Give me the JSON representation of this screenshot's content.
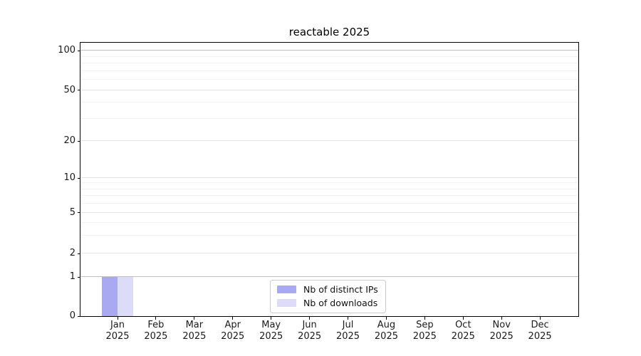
{
  "chart_data": {
    "type": "bar",
    "title": "reactable 2025",
    "categories": [
      "Jan 2025",
      "Feb 2025",
      "Mar 2025",
      "Apr 2025",
      "May 2025",
      "Jun 2025",
      "Jul 2025",
      "Aug 2025",
      "Sep 2025",
      "Oct 2025",
      "Nov 2025",
      "Dec 2025"
    ],
    "x_tick_top": [
      "Jan",
      "Feb",
      "Mar",
      "Apr",
      "May",
      "Jun",
      "Jul",
      "Aug",
      "Sep",
      "Oct",
      "Nov",
      "Dec"
    ],
    "x_tick_bottom": "2025",
    "series": [
      {
        "name": "Nb of distinct IPs",
        "color": "#a8a9f1",
        "values": [
          1,
          0,
          0,
          0,
          0,
          0,
          0,
          0,
          0,
          0,
          0,
          0
        ]
      },
      {
        "name": "Nb of downloads",
        "color": "#dcdcf8",
        "values": [
          1,
          0,
          0,
          0,
          0,
          0,
          0,
          0,
          0,
          0,
          0,
          0
        ]
      }
    ],
    "yaxis": {
      "scale": "log-like with 0 baseline",
      "major_ticks": [
        {
          "v": 100,
          "pos": 0.971,
          "emph": true
        },
        {
          "v": 50,
          "pos": 0.826,
          "emph": false
        },
        {
          "v": 20,
          "pos": 0.64,
          "emph": false
        },
        {
          "v": 10,
          "pos": 0.505,
          "emph": false
        },
        {
          "v": 5,
          "pos": 0.378,
          "emph": false
        },
        {
          "v": 2,
          "pos": 0.229,
          "emph": false
        },
        {
          "v": 1,
          "pos": 0.143,
          "emph": true
        },
        {
          "v": 0,
          "pos": 0.0,
          "emph": false
        }
      ],
      "minor_ticks_pos": [
        0.949,
        0.924,
        0.897,
        0.864,
        0.781,
        0.722,
        0.486,
        0.464,
        0.44,
        0.411,
        0.341,
        0.295
      ]
    },
    "x_positions": [
      0.0744,
      0.1515,
      0.2287,
      0.3058,
      0.383,
      0.4601,
      0.5372,
      0.6144,
      0.6915,
      0.7687,
      0.8458,
      0.9229
    ],
    "legend": {
      "position": "lower-center",
      "items": [
        {
          "label": "Nb of distinct IPs",
          "color": "#a8a9f1"
        },
        {
          "label": "Nb of downloads",
          "color": "#dcdcf8"
        }
      ]
    },
    "grid": true
  },
  "colors": {
    "background": "#ffffff",
    "spine": "#000000",
    "grid_major": "#e4e4e4",
    "grid_minor": "#f2f2f2",
    "grid_emphasis": "#bfbfbf",
    "text": "#1a1a1a",
    "legend_border": "#cccccc"
  }
}
